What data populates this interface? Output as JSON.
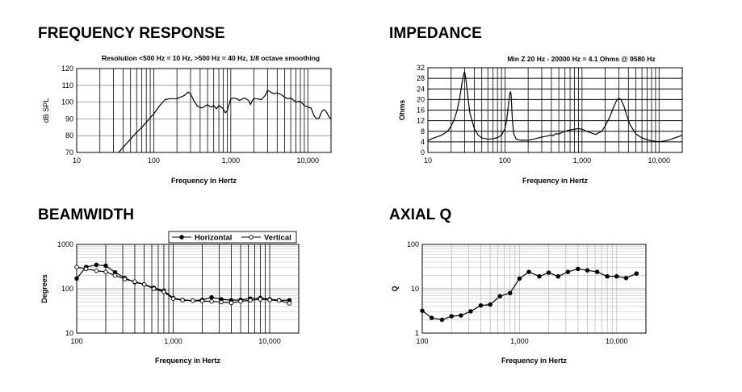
{
  "panels": {
    "fr": {
      "title": "FREQUENCY RESPONSE"
    },
    "imp": {
      "title": "IMPEDANCE"
    },
    "bw": {
      "title": "BEAMWIDTH"
    },
    "q": {
      "title": "AXIAL Q"
    }
  },
  "chart_data": [
    {
      "id": "fr",
      "type": "line",
      "note": "Resolution <500 Hz = 10 Hz, >500 Hz = 40 Hz, 1/8 octave smoothing",
      "xlabel": "Frequency in Hertz",
      "ylabel": "dB SPL",
      "xscale": "log",
      "xlim": [
        10,
        20000
      ],
      "ylim": [
        70,
        120
      ],
      "xticks": [
        10,
        100,
        1000,
        10000
      ],
      "xtick_labels": [
        "10",
        "100",
        "1,000",
        "10,000"
      ],
      "yticks": [
        70,
        80,
        90,
        100,
        110,
        120
      ],
      "ytick_labels": [
        "70",
        "80",
        "90",
        "100",
        "110",
        "120"
      ],
      "grid": true,
      "series": [
        {
          "x": [
            35,
            40,
            50,
            60,
            70,
            80,
            100,
            120,
            140,
            160,
            180,
            200,
            250,
            280,
            300,
            330,
            370,
            420,
            500,
            550,
            600,
            650,
            700,
            750,
            800,
            850,
            900,
            1000,
            1100,
            1200,
            1300,
            1500,
            1700,
            1800,
            1900,
            2000,
            2200,
            2500,
            2800,
            3000,
            3300,
            3600,
            4000,
            4500,
            5000,
            5500,
            6000,
            7000,
            8000,
            9000,
            10000,
            11000,
            12000,
            13000,
            14000,
            15000,
            16000,
            17000,
            18000,
            19000,
            20000
          ],
          "y": [
            70,
            73,
            78,
            82,
            85,
            88,
            93,
            98,
            101.5,
            102,
            102,
            102,
            104,
            106,
            105,
            101,
            97.5,
            96.5,
            98.5,
            97,
            98,
            96,
            98,
            97,
            96,
            93.5,
            95,
            102,
            102.5,
            102,
            101,
            102.5,
            101,
            98.5,
            101,
            102,
            102,
            101.5,
            104,
            107,
            106,
            105,
            105.5,
            104.5,
            103,
            102,
            102.5,
            100,
            100.5,
            98,
            97,
            96.5,
            92,
            90,
            90.5,
            94,
            95.5,
            95,
            93,
            91,
            90
          ]
        }
      ]
    },
    {
      "id": "imp",
      "type": "line",
      "note": "Min Z  20 Hz - 20000 Hz = 4.1 Ohms @ 9580 Hz",
      "xlabel": "Frequency in Hertz",
      "ylabel": "Ohms",
      "xscale": "log",
      "xlim": [
        10,
        20000
      ],
      "ylim": [
        0,
        32
      ],
      "xticks": [
        10,
        100,
        1000,
        10000
      ],
      "xtick_labels": [
        "10",
        "100",
        "1,000",
        "10,000"
      ],
      "yticks": [
        0,
        4,
        8,
        12,
        16,
        20,
        24,
        28,
        32
      ],
      "ytick_labels": [
        "0",
        "4",
        "8",
        "12",
        "16",
        "20",
        "24",
        "28",
        "32"
      ],
      "grid": true,
      "series": [
        {
          "x": [
            10,
            12,
            15,
            18,
            20,
            22,
            24,
            26,
            28,
            29,
            30,
            31,
            33,
            35,
            40,
            45,
            50,
            60,
            70,
            80,
            90,
            100,
            105,
            110,
            115,
            118,
            120,
            122,
            125,
            130,
            140,
            160,
            200,
            250,
            300,
            350,
            400,
            420,
            450,
            500,
            600,
            700,
            800,
            900,
            1000,
            1200,
            1500,
            1800,
            2000,
            2300,
            2600,
            2800,
            3000,
            3200,
            3500,
            3800,
            4200,
            5000,
            6000,
            7000,
            8000,
            9580,
            11000,
            13000,
            15000,
            18000,
            20000
          ],
          "y": [
            4.5,
            5.5,
            6.5,
            8,
            10,
            12.5,
            16,
            21,
            27,
            29.5,
            30.5,
            28,
            21,
            15,
            9,
            6.5,
            5.5,
            5,
            5.2,
            5.6,
            6.5,
            9,
            12,
            17,
            22,
            23,
            22,
            18,
            12,
            7,
            5,
            4.6,
            4.6,
            5.2,
            5.8,
            6.2,
            6.6,
            6.3,
            7,
            7,
            8,
            8.5,
            8.8,
            9,
            8.8,
            7.8,
            6.8,
            8,
            10,
            13.5,
            17.5,
            19.5,
            20.5,
            20,
            17.5,
            14,
            10.5,
            7,
            5.5,
            4.8,
            4.4,
            4.1,
            4.2,
            4.6,
            5.2,
            6,
            6.5
          ]
        }
      ]
    },
    {
      "id": "bw",
      "type": "line",
      "xlabel": "Frequency in Hertz",
      "ylabel": "Degrees",
      "xscale": "log",
      "yscale": "log",
      "xlim": [
        100,
        20000
      ],
      "ylim": [
        10,
        1000
      ],
      "xticks": [
        100,
        1000,
        10000
      ],
      "xtick_labels": [
        "100",
        "1,000",
        "10,000"
      ],
      "yticks": [
        10,
        100,
        1000
      ],
      "ytick_labels": [
        "10",
        "100",
        "1000"
      ],
      "grid": true,
      "legend_position": "top-right",
      "series": [
        {
          "name": "Horizontal",
          "marker": "filled",
          "x": [
            100,
            125,
            160,
            200,
            250,
            315,
            400,
            500,
            630,
            800,
            1000,
            1250,
            1600,
            2000,
            2500,
            3150,
            4000,
            5000,
            6300,
            8000,
            10000,
            12500,
            16000
          ],
          "y": [
            170,
            310,
            345,
            330,
            235,
            175,
            140,
            125,
            105,
            90,
            62,
            56,
            54,
            56,
            64,
            58,
            55,
            56,
            60,
            62,
            58,
            55,
            55
          ]
        },
        {
          "name": "Vertical",
          "marker": "open",
          "x": [
            100,
            125,
            160,
            200,
            250,
            315,
            400,
            500,
            630,
            800,
            1000,
            1250,
            1600,
            2000,
            2500,
            3150,
            4000,
            5000,
            6300,
            8000,
            10000,
            12500,
            16000
          ],
          "y": [
            310,
            280,
            255,
            240,
            200,
            165,
            145,
            125,
            100,
            85,
            60,
            55,
            54,
            53,
            52,
            50,
            48,
            52,
            55,
            58,
            56,
            54,
            47
          ]
        }
      ]
    },
    {
      "id": "q",
      "type": "line",
      "xlabel": "Frequency in Hertz",
      "ylabel": "Q",
      "xscale": "log",
      "yscale": "log",
      "xlim": [
        100,
        20000
      ],
      "ylim": [
        1,
        100
      ],
      "xticks": [
        100,
        1000,
        10000
      ],
      "xtick_labels": [
        "100",
        "1,000",
        "10,000"
      ],
      "yticks": [
        1,
        10,
        100
      ],
      "ytick_labels": [
        "1",
        "10",
        "100"
      ],
      "grid": true,
      "series": [
        {
          "marker": "filled",
          "x": [
            100,
            125,
            160,
            200,
            250,
            315,
            400,
            500,
            630,
            800,
            1000,
            1250,
            1600,
            2000,
            2500,
            3150,
            4000,
            5000,
            6300,
            8000,
            10000,
            12500,
            16000
          ],
          "y": [
            3.2,
            2.2,
            2.0,
            2.4,
            2.5,
            3.1,
            4.2,
            4.4,
            6.8,
            8.0,
            17,
            24,
            19,
            23,
            19,
            24,
            28,
            26,
            24,
            19,
            19,
            17.5,
            22
          ]
        }
      ]
    }
  ]
}
